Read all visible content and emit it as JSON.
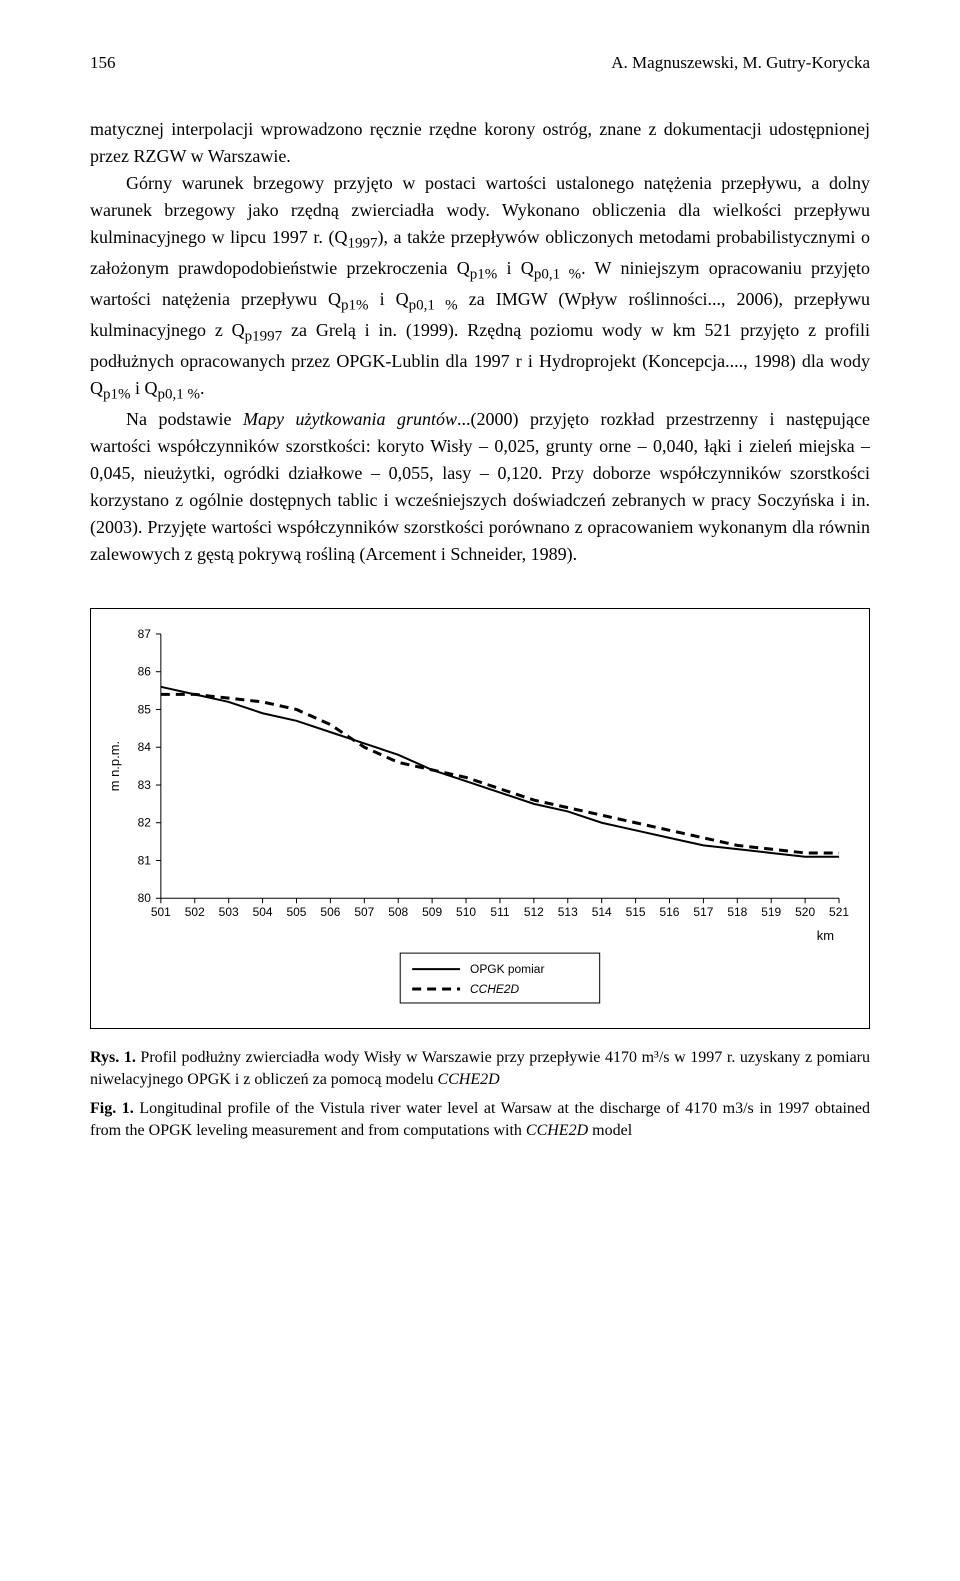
{
  "header": {
    "page_number": "156",
    "authors": "A. Magnuszewski, M. Gutry-Korycka"
  },
  "body": {
    "p1": "matycznej interpolacji wprowadzono ręcznie rzędne korony ostróg, znane z dokumentacji udostępnionej przez RZGW w Warszawie.",
    "p2_a": "Górny warunek brzegowy przyjęto w postaci wartości ustalonego natężenia przepływu, a dolny warunek brzegowy jako rzędną zwierciadła wody. Wykonano obliczenia dla wielkości przepływu kulminacyjnego w lipcu 1997 r. (Q",
    "p2_sub1": "1997",
    "p2_b": "), a także przepływów obliczonych metodami probabilistycznymi o założonym prawdopodobieństwie przekroczenia Q",
    "p2_sub2": "p1%",
    "p2_c": " i Q",
    "p2_sub3": "p0,1 %",
    "p2_d": ". W niniejszym opracowaniu przyjęto wartości natężenia przepływu Q",
    "p2_sub4": "p1%",
    "p2_e": " i Q",
    "p2_sub5": "p0,1 %",
    "p2_f": " za IMGW (Wpływ roślinności..., 2006), przepływu kulminacyjnego z Q",
    "p2_sub6": "p1997",
    "p2_g": " za Grelą i in. (1999). Rzędną poziomu wody w km 521 przyjęto z profili podłużnych opracowanych przez OPGK-Lublin dla 1997 r i Hydroprojekt (Koncepcja...., 1998) dla wody Q",
    "p2_sub7": "p1%",
    "p2_h": " i Q",
    "p2_sub8": "p0,1 %",
    "p2_i": ".",
    "p3_a": "Na podstawie ",
    "p3_italic": "Mapy użytkowania gruntów",
    "p3_b": "...(2000) przyjęto rozkład przestrzenny i następujące wartości współczynników szorstkości: koryto Wisły – 0,025, grunty orne – 0,040, łąki i zieleń miejska – 0,045, nieużytki, ogródki działkowe – 0,055, lasy – 0,120. Przy doborze współczynników szorstkości korzystano z ogólnie dostępnych tablic i wcześniejszych doświadczeń zebranych w pracy Soczyńska i in. (2003). Przyjęte wartości współczynników szorstkości porównano z opracowaniem wykonanym dla równin zalewowych z gęstą pokrywą rośliną (Arcement i Schneider, 1989)."
  },
  "chart": {
    "type": "line",
    "ylabel": "m n.p.m.",
    "xlabel": "km",
    "x_ticks": [
      "501",
      "502",
      "503",
      "504",
      "505",
      "506",
      "507",
      "508",
      "509",
      "510",
      "511",
      "512",
      "513",
      "514",
      "515",
      "516",
      "517",
      "518",
      "519",
      "520",
      "521"
    ],
    "y_ticks": [
      "80",
      "81",
      "82",
      "83",
      "84",
      "85",
      "86",
      "87"
    ],
    "ylim": [
      80,
      87
    ],
    "xlim": [
      501,
      521
    ],
    "series": [
      {
        "name": "OPGK pomiar",
        "style": "solid",
        "color": "#000000",
        "width": 2,
        "data": [
          [
            501,
            85.6
          ],
          [
            502,
            85.4
          ],
          [
            503,
            85.2
          ],
          [
            504,
            84.9
          ],
          [
            505,
            84.7
          ],
          [
            506,
            84.4
          ],
          [
            507,
            84.1
          ],
          [
            508,
            83.8
          ],
          [
            509,
            83.4
          ],
          [
            510,
            83.1
          ],
          [
            511,
            82.8
          ],
          [
            512,
            82.5
          ],
          [
            513,
            82.3
          ],
          [
            514,
            82.0
          ],
          [
            515,
            81.8
          ],
          [
            516,
            81.6
          ],
          [
            517,
            81.4
          ],
          [
            518,
            81.3
          ],
          [
            519,
            81.2
          ],
          [
            520,
            81.1
          ],
          [
            521,
            81.1
          ]
        ]
      },
      {
        "name": "CCHE2D",
        "style": "dashed",
        "color": "#000000",
        "width": 3,
        "dash": "9,6",
        "data": [
          [
            501,
            85.4
          ],
          [
            502,
            85.4
          ],
          [
            503,
            85.3
          ],
          [
            504,
            85.2
          ],
          [
            505,
            85.0
          ],
          [
            506,
            84.6
          ],
          [
            507,
            84.0
          ],
          [
            508,
            83.6
          ],
          [
            509,
            83.4
          ],
          [
            510,
            83.2
          ],
          [
            511,
            82.9
          ],
          [
            512,
            82.6
          ],
          [
            513,
            82.4
          ],
          [
            514,
            82.2
          ],
          [
            515,
            82.0
          ],
          [
            516,
            81.8
          ],
          [
            517,
            81.6
          ],
          [
            518,
            81.4
          ],
          [
            519,
            81.3
          ],
          [
            520,
            81.2
          ],
          [
            521,
            81.2
          ]
        ]
      }
    ],
    "legend": {
      "items": [
        "OPGK pomiar",
        "CCHE2D"
      ]
    },
    "background_color": "#ffffff",
    "axis_color": "#000000",
    "text_color": "#000000",
    "tick_fontsize": 12,
    "label_fontsize": 13
  },
  "caption": {
    "rys_label": "Rys. 1.",
    "rys_text": " Profil podłużny zwierciadła wody Wisły w Warszawie przy przepływie 4170 m³/s w 1997 r. uzyskany z pomiaru niwelacyjnego OPGK i z obliczeń za pomocą modelu ",
    "rys_italic": "CCHE2D",
    "fig_label": "Fig. 1.",
    "fig_text": " Longitudinal profile of the Vistula river water level at Warsaw at the discharge of 4170 m3/s in 1997 obtained from the OPGK leveling measurement and from computations with ",
    "fig_italic": "CCHE2D",
    "fig_tail": " model"
  }
}
